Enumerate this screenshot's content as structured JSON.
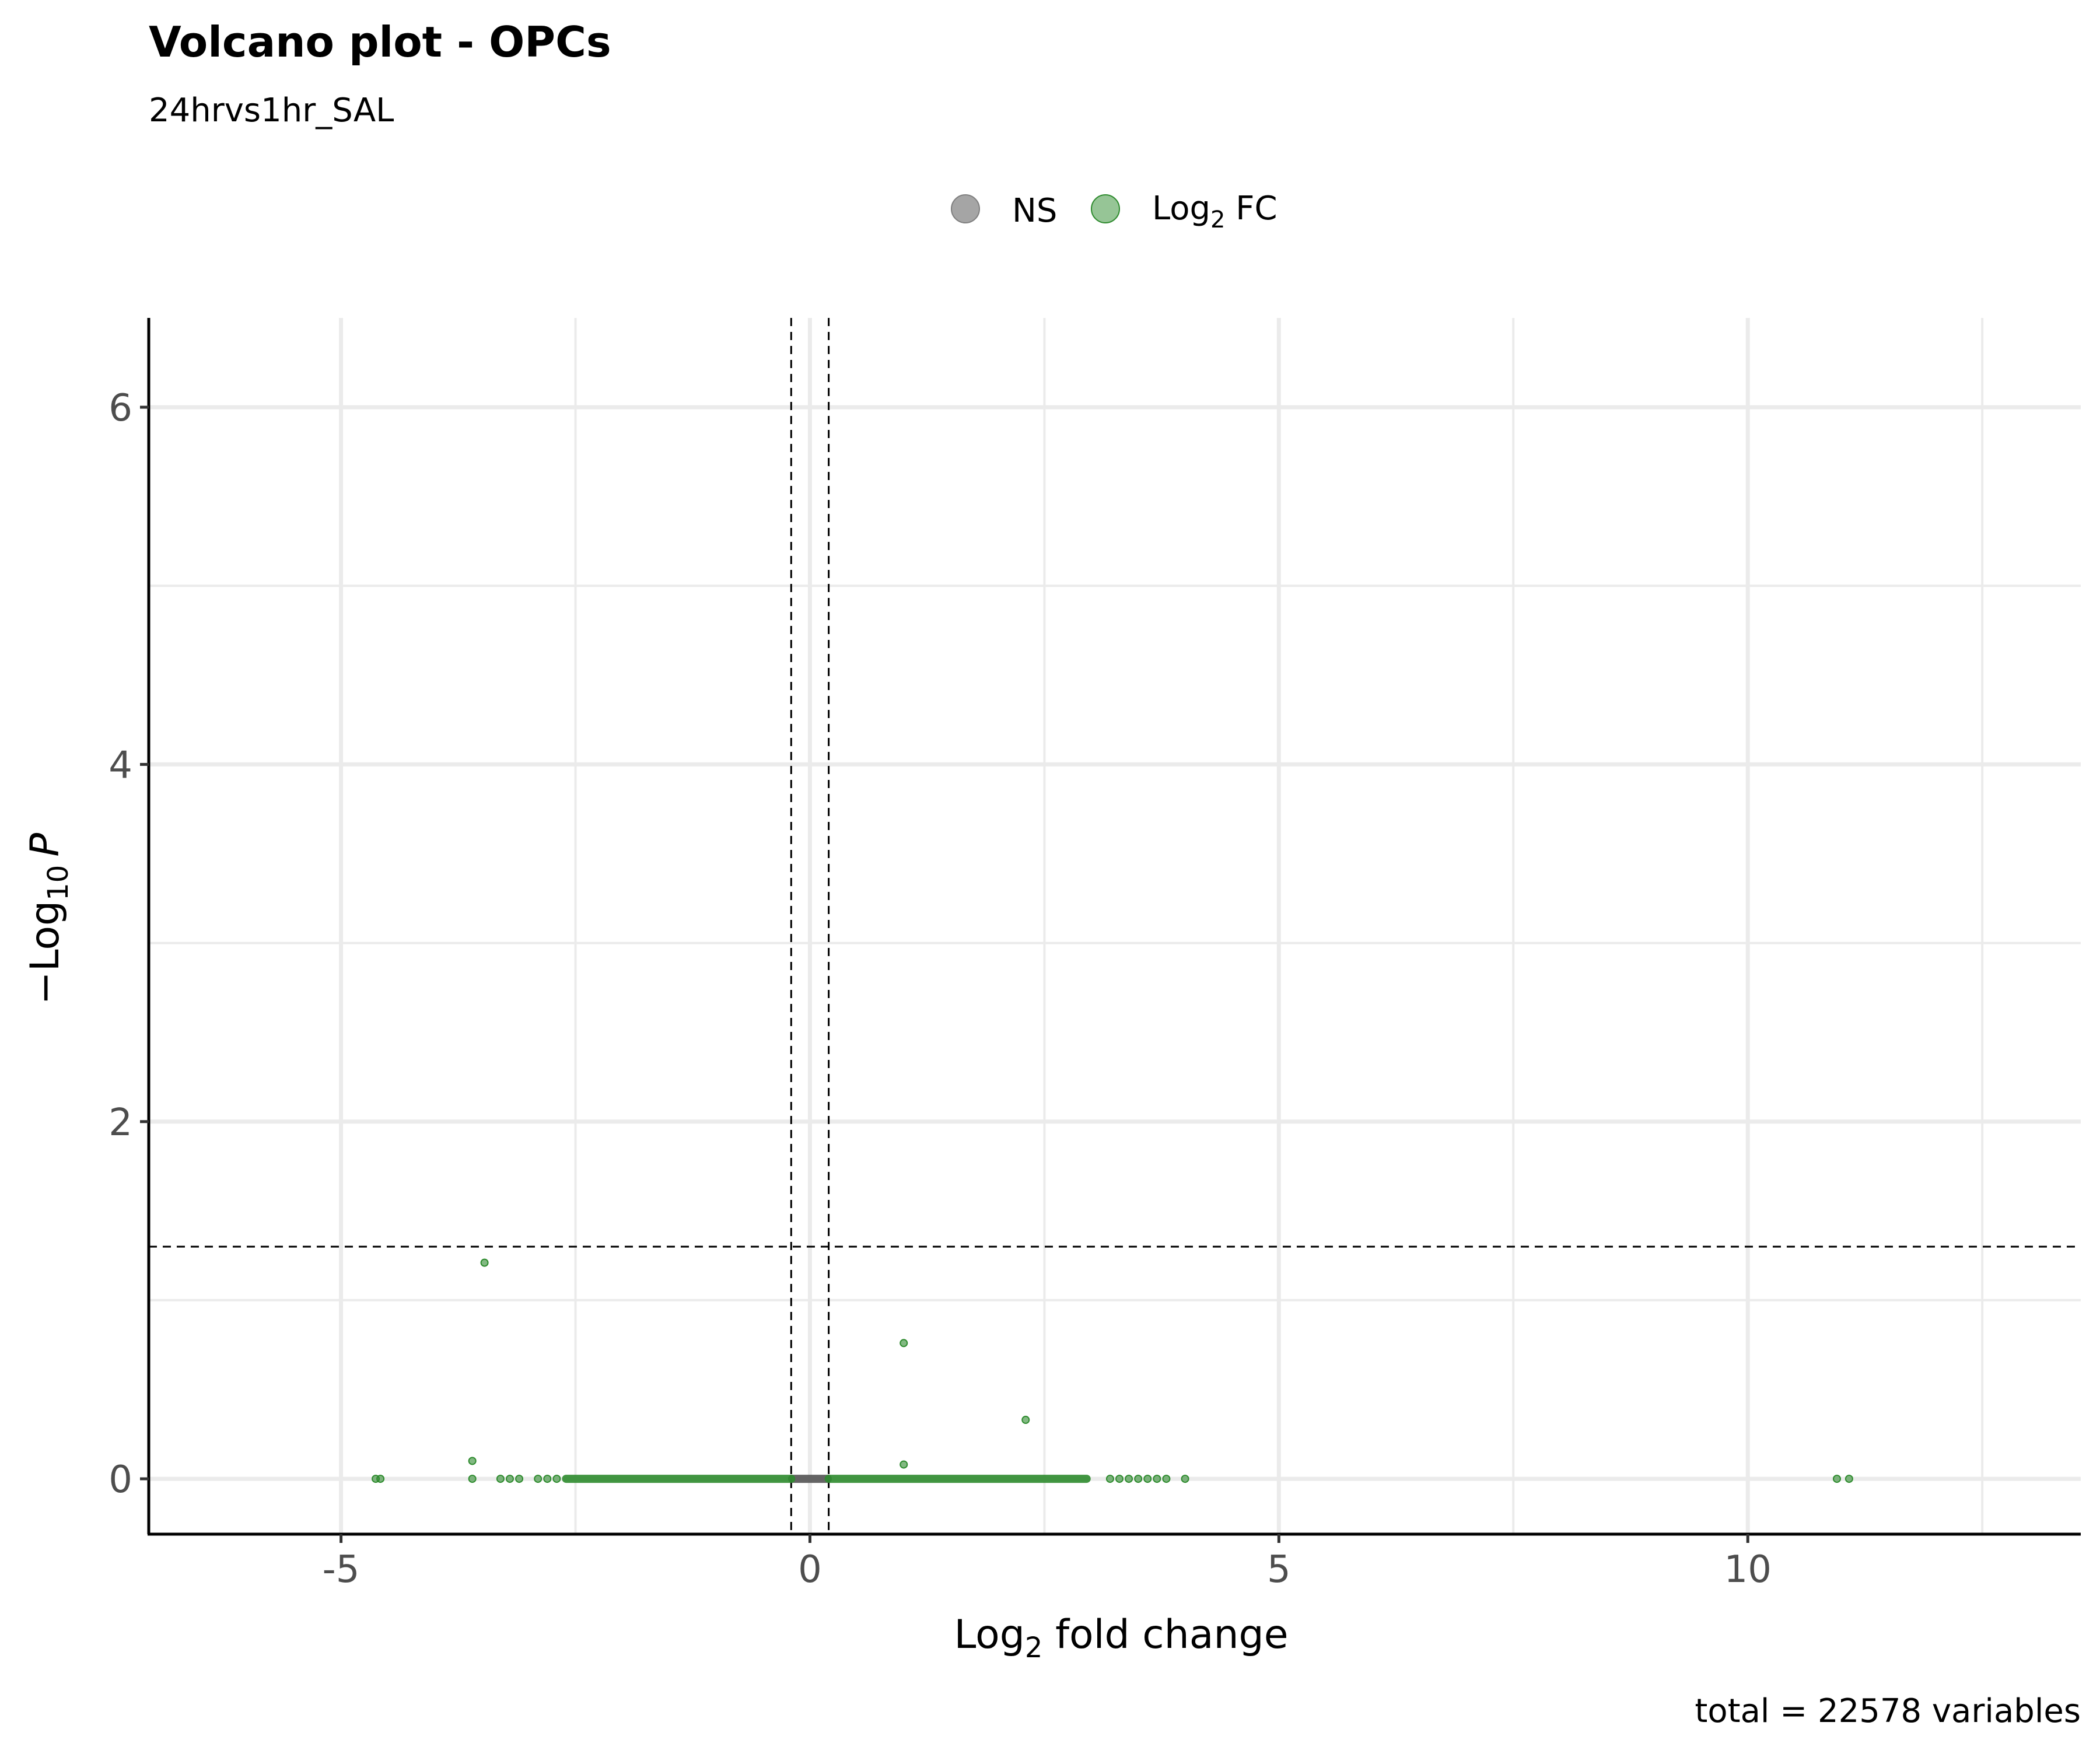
{
  "chart_data": {
    "type": "scatter",
    "title": "Volcano plot - OPCs",
    "subtitle": "24hrvs1hr_SAL",
    "caption": "total = 22578 variables",
    "xlabel": {
      "base": "Log",
      "sub": "2",
      "rest": " fold change"
    },
    "ylabel": {
      "prefix": "−Log",
      "sub": "10",
      "italic": "P"
    },
    "xlim": [
      -7.05,
      13.55
    ],
    "ylim": [
      -0.31,
      6.5
    ],
    "x_ticks": [
      -5,
      0,
      5,
      10
    ],
    "x_tick_labels": [
      "-5",
      "0",
      "5",
      "10"
    ],
    "y_ticks": [
      0,
      2,
      4,
      6
    ],
    "y_tick_labels": [
      "0",
      "2",
      "4",
      "6"
    ],
    "grid": true,
    "legend_position": "top",
    "legend": [
      {
        "name": "NS",
        "color": "#7f7f7f"
      },
      {
        "name": "Log₂ FC",
        "name_base": "Log",
        "name_sub": "2",
        "name_rest": " FC",
        "color": "#2e8b2e"
      }
    ],
    "cutoffs": {
      "fold_change": [
        -0.2,
        0.2
      ],
      "neg_log10_p": 1.3
    },
    "series": [
      {
        "name": "NS",
        "color": "#555555",
        "dense_ranges": [
          {
            "x_from": -0.19,
            "x_to": 0.19,
            "y": 0
          }
        ],
        "points": []
      },
      {
        "name": "Log₂ FC",
        "color": "#2e8b2e",
        "dense_ranges": [
          {
            "x_from": -2.6,
            "x_to": -0.2,
            "y": 0
          },
          {
            "x_from": 0.2,
            "x_to": 2.95,
            "y": 0
          }
        ],
        "points": [
          {
            "x": -3.47,
            "y": 1.21
          },
          {
            "x": -3.6,
            "y": 0.1
          },
          {
            "x": -3.6,
            "y": 0.0
          },
          {
            "x": -4.63,
            "y": 0.0
          },
          {
            "x": -4.58,
            "y": 0.0
          },
          {
            "x": -3.3,
            "y": 0.0
          },
          {
            "x": -3.2,
            "y": 0.0
          },
          {
            "x": -3.1,
            "y": 0.0
          },
          {
            "x": -2.9,
            "y": 0.0
          },
          {
            "x": -2.8,
            "y": 0.0
          },
          {
            "x": -2.7,
            "y": 0.0
          },
          {
            "x": 1.0,
            "y": 0.76
          },
          {
            "x": 1.0,
            "y": 0.08
          },
          {
            "x": 2.3,
            "y": 0.33
          },
          {
            "x": 3.2,
            "y": 0.0
          },
          {
            "x": 3.3,
            "y": 0.0
          },
          {
            "x": 3.4,
            "y": 0.0
          },
          {
            "x": 3.5,
            "y": 0.0
          },
          {
            "x": 3.6,
            "y": 0.0
          },
          {
            "x": 3.7,
            "y": 0.0
          },
          {
            "x": 3.8,
            "y": 0.0
          },
          {
            "x": 4.0,
            "y": 0.0
          },
          {
            "x": 10.95,
            "y": 0.0
          },
          {
            "x": 11.08,
            "y": 0.0
          }
        ]
      }
    ]
  }
}
